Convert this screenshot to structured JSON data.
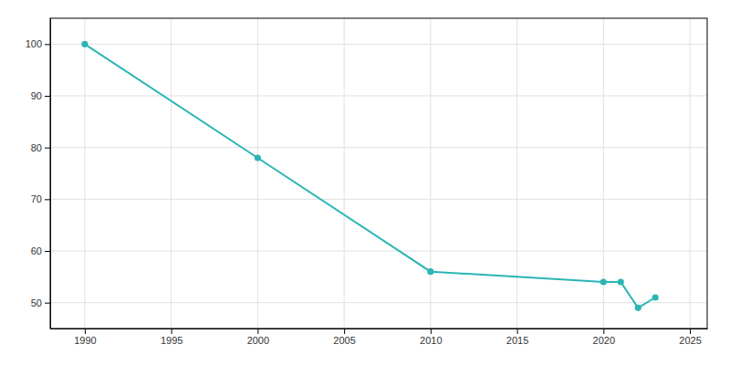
{
  "chart_data": {
    "type": "line",
    "x": [
      1990,
      2000,
      2010,
      2020,
      2021,
      2022,
      2023
    ],
    "values": [
      100,
      78,
      56,
      54,
      54,
      49,
      51
    ],
    "color": "#2ab5b5",
    "marker": "circle",
    "xlim": [
      1988,
      2026
    ],
    "ylim": [
      45,
      105
    ],
    "xticks": [
      1990,
      1995,
      2000,
      2005,
      2010,
      2015,
      2020,
      2025
    ],
    "yticks": [
      50,
      60,
      70,
      80,
      90,
      100
    ],
    "grid": true
  }
}
